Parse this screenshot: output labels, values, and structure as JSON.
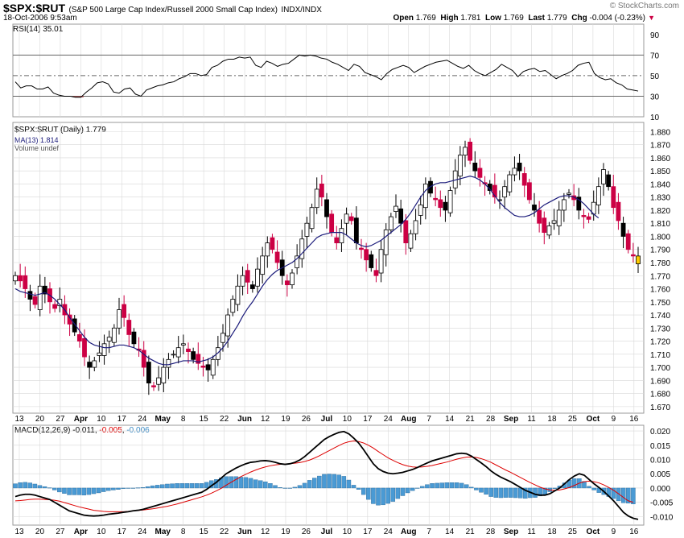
{
  "header": {
    "symbol": "$SPX:$RUT",
    "description": "(S&P 500 Large Cap Index/Russell 2000 Small Cap Index)",
    "exchange": "INDX/INDX",
    "timestamp": "18-Oct-2006 9:53am",
    "watermark": "© StockCharts.com",
    "open_label": "Open",
    "open_value": "1.769",
    "high_label": "High",
    "high_value": "1.781",
    "low_label": "Low",
    "low_value": "1.769",
    "last_label": "Last",
    "last_value": "1.779",
    "chg_label": "Chg",
    "chg_value": "-0.004 (-0.23%)",
    "chg_arrow": "▼"
  },
  "colors": {
    "up_candle": "#ffffff",
    "down_candle": "#000000",
    "red_candle": "#cc0044",
    "ma_line": "#1a1a7a",
    "rsi_line": "#000000",
    "rsi_overbought_fill": "#3a6b3a",
    "rsi_oversold_fill": "#b04040",
    "macd_line": "#000000",
    "signal_line": "#dd0000",
    "histogram": "#4a9ad4",
    "last_candle": "#ffcc00",
    "grid": "#d8d8d8"
  },
  "chart_data": [
    {
      "type": "line",
      "panel": "RSI",
      "legend": "RSI(14) 35.01",
      "ylim": [
        10,
        100
      ],
      "yticks": [
        90,
        70,
        50,
        30,
        10
      ],
      "reference_lines": [
        70,
        50,
        30
      ],
      "series": [
        {
          "values": [
            44,
            38,
            40,
            40,
            37,
            37,
            39,
            33,
            31,
            30,
            30,
            29,
            29,
            34,
            38,
            43,
            44,
            42,
            34,
            33,
            37,
            38,
            32,
            30,
            36,
            38,
            40,
            41,
            43,
            44,
            47,
            49,
            52,
            52,
            50,
            51,
            58,
            60,
            64,
            66,
            66,
            68,
            67,
            68,
            60,
            58,
            64,
            62,
            59,
            61,
            62,
            66,
            70,
            69,
            70,
            69,
            67,
            66,
            63,
            61,
            58,
            55,
            61,
            59,
            53,
            51,
            49,
            46,
            52,
            56,
            58,
            60,
            58,
            53,
            56,
            59,
            61,
            63,
            64,
            65,
            62,
            59,
            57,
            60,
            55,
            52,
            50,
            53,
            56,
            61,
            58,
            55,
            49,
            54,
            56,
            57,
            54,
            55,
            51,
            47,
            50,
            52,
            55,
            60,
            62,
            63,
            52,
            48,
            46,
            47,
            43,
            41,
            37,
            36,
            35
          ]
        }
      ]
    },
    {
      "type": "candlestick",
      "panel": "price",
      "legend": [
        "$SPX:$RUT (Daily) 1.779",
        "MA(13) 1.814",
        "Volume undef"
      ],
      "ylim": [
        1.665,
        1.887
      ],
      "yticks": [
        1.88,
        1.87,
        1.86,
        1.85,
        1.84,
        1.83,
        1.82,
        1.81,
        1.8,
        1.79,
        1.78,
        1.77,
        1.76,
        1.75,
        1.74,
        1.73,
        1.72,
        1.71,
        1.7,
        1.69,
        1.68,
        1.67
      ],
      "x_tick_labels": [
        "13",
        "20",
        "27",
        "Apr",
        "10",
        "17",
        "24",
        "May",
        "8",
        "15",
        "22",
        "Jun",
        "12",
        "19",
        "26",
        "Jul",
        "10",
        "17",
        "24",
        "Aug",
        "7",
        "14",
        "21",
        "28",
        "Sep",
        "11",
        "18",
        "25",
        "Oct",
        "9",
        "16"
      ],
      "close": [
        1.77,
        1.766,
        1.76,
        1.752,
        1.748,
        1.762,
        1.756,
        1.75,
        1.745,
        1.752,
        1.74,
        1.733,
        1.727,
        1.72,
        1.708,
        1.7,
        1.705,
        1.711,
        1.718,
        1.723,
        1.73,
        1.744,
        1.738,
        1.725,
        1.718,
        1.713,
        1.7,
        1.688,
        1.685,
        1.692,
        1.7,
        1.706,
        1.71,
        1.715,
        1.718,
        1.712,
        1.706,
        1.703,
        1.7,
        1.698,
        1.706,
        1.715,
        1.726,
        1.74,
        1.752,
        1.762,
        1.77,
        1.765,
        1.76,
        1.775,
        1.785,
        1.795,
        1.79,
        1.78,
        1.77,
        1.763,
        1.772,
        1.785,
        1.798,
        1.81,
        1.822,
        1.836,
        1.83,
        1.815,
        1.803,
        1.795,
        1.806,
        1.817,
        1.812,
        1.795,
        1.79,
        1.782,
        1.776,
        1.77,
        1.79,
        1.805,
        1.815,
        1.823,
        1.81,
        1.795,
        1.802,
        1.812,
        1.824,
        1.84,
        1.833,
        1.828,
        1.822,
        1.82,
        1.835,
        1.85,
        1.862,
        1.868,
        1.858,
        1.85,
        1.845,
        1.84,
        1.835,
        1.83,
        1.828,
        1.838,
        1.847,
        1.852,
        1.85,
        1.839,
        1.828,
        1.82,
        1.81,
        1.803,
        1.808,
        1.812,
        1.82,
        1.828,
        1.833,
        1.828,
        1.82,
        1.815,
        1.813,
        1.826,
        1.838,
        1.851,
        1.838,
        1.822,
        1.812,
        1.8,
        1.79,
        1.785,
        1.779
      ],
      "ma": [
        1.76,
        1.758,
        1.757,
        1.756,
        1.755,
        1.756,
        1.757,
        1.755,
        1.752,
        1.748,
        1.744,
        1.738,
        1.733,
        1.728,
        1.723,
        1.719,
        1.717,
        1.716,
        1.715,
        1.715,
        1.716,
        1.717,
        1.717,
        1.716,
        1.715,
        1.713,
        1.71,
        1.707,
        1.705,
        1.703,
        1.702,
        1.702,
        1.703,
        1.704,
        1.705,
        1.705,
        1.705,
        1.704,
        1.705,
        1.706,
        1.708,
        1.711,
        1.715,
        1.72,
        1.726,
        1.732,
        1.739,
        1.745,
        1.75,
        1.756,
        1.762,
        1.767,
        1.771,
        1.774,
        1.776,
        1.778,
        1.78,
        1.783,
        1.787,
        1.791,
        1.795,
        1.799,
        1.801,
        1.802,
        1.803,
        1.803,
        1.803,
        1.801,
        1.798,
        1.795,
        1.793,
        1.792,
        1.793,
        1.795,
        1.797,
        1.8,
        1.803,
        1.806,
        1.809,
        1.813,
        1.818,
        1.824,
        1.83,
        1.835,
        1.838,
        1.84,
        1.841,
        1.841,
        1.842,
        1.843,
        1.844,
        1.845,
        1.846,
        1.845,
        1.843,
        1.84,
        1.836,
        1.831,
        1.826,
        1.822,
        1.819,
        1.816,
        1.815,
        1.815,
        1.816,
        1.818,
        1.821,
        1.824,
        1.826,
        1.828,
        1.83,
        1.831,
        1.831,
        1.83,
        1.828,
        1.825,
        1.821,
        1.817,
        1.814
      ]
    },
    {
      "type": "line",
      "panel": "MACD",
      "legend": [
        "MACD(12,26,9) -0.011",
        "-0.005",
        "-0.006"
      ],
      "ylim": [
        -0.013,
        0.022
      ],
      "yticks": [
        0.02,
        0.015,
        0.01,
        0.005,
        0.0,
        -0.005,
        -0.01
      ],
      "x_tick_labels": [
        "13",
        "20",
        "27",
        "Apr",
        "10",
        "17",
        "24",
        "May",
        "8",
        "15",
        "22",
        "Jun",
        "12",
        "19",
        "26",
        "Jul",
        "10",
        "17",
        "24",
        "Aug",
        "7",
        "14",
        "21",
        "28",
        "Sep",
        "11",
        "18",
        "25",
        "Oct",
        "9",
        "16"
      ],
      "series": [
        {
          "name": "MACD(12,26,9)",
          "values": [
            -0.003,
            -0.0025,
            -0.0022,
            -0.0022,
            -0.0025,
            -0.003,
            -0.0035,
            -0.004,
            -0.005,
            -0.006,
            -0.007,
            -0.008,
            -0.0085,
            -0.009,
            -0.0095,
            -0.0097,
            -0.0098,
            -0.0097,
            -0.0095,
            -0.0092,
            -0.009,
            -0.0088,
            -0.0085,
            -0.0083,
            -0.008,
            -0.0078,
            -0.0075,
            -0.007,
            -0.0065,
            -0.006,
            -0.0055,
            -0.005,
            -0.0045,
            -0.004,
            -0.0035,
            -0.003,
            -0.0025,
            -0.002,
            -0.0015,
            -0.0005,
            0.0008,
            0.002,
            0.0035,
            0.005,
            0.006,
            0.007,
            0.0078,
            0.0085,
            0.009,
            0.0092,
            0.0095,
            0.0096,
            0.0094,
            0.009,
            0.0085,
            0.0083,
            0.0085,
            0.009,
            0.0098,
            0.011,
            0.0125,
            0.014,
            0.0155,
            0.017,
            0.018,
            0.0188,
            0.0195,
            0.0198,
            0.019,
            0.0175,
            0.0158,
            0.0135,
            0.011,
            0.0085,
            0.0068,
            0.0058,
            0.0052,
            0.005,
            0.0052,
            0.0055,
            0.006,
            0.0065,
            0.0072,
            0.008,
            0.0088,
            0.0095,
            0.01,
            0.0105,
            0.011,
            0.0115,
            0.012,
            0.0122,
            0.012,
            0.0112,
            0.01,
            0.0088,
            0.0075,
            0.006,
            0.0048,
            0.0038,
            0.003,
            0.0022,
            0.0012,
            0.0002,
            -0.0008,
            -0.0015,
            -0.0022,
            -0.0025,
            -0.0025,
            -0.002,
            -0.001,
            0.0,
            0.0015,
            0.003,
            0.0042,
            0.005,
            0.0045,
            0.003,
            0.0015,
            0.0002,
            -0.0012,
            -0.0028,
            -0.0045,
            -0.0065,
            -0.0085,
            -0.0098,
            -0.0106,
            -0.011
          ]
        },
        {
          "name": "signal",
          "values": [
            -0.0045,
            -0.0044,
            -0.0042,
            -0.004,
            -0.0039,
            -0.0039,
            -0.004,
            -0.0041,
            -0.0043,
            -0.0046,
            -0.0051,
            -0.0056,
            -0.0061,
            -0.0066,
            -0.007,
            -0.0074,
            -0.0078,
            -0.008,
            -0.0082,
            -0.0083,
            -0.0083,
            -0.0083,
            -0.0083,
            -0.0082,
            -0.008,
            -0.0079,
            -0.0077,
            -0.0075,
            -0.0073,
            -0.007,
            -0.0067,
            -0.0064,
            -0.006,
            -0.0056,
            -0.0051,
            -0.0046,
            -0.0041,
            -0.0036,
            -0.0031,
            -0.0025,
            -0.0018,
            -0.001,
            -0.0001,
            0.001,
            0.002,
            0.003,
            0.004,
            0.0048,
            0.0056,
            0.0063,
            0.0069,
            0.0074,
            0.0078,
            0.0081,
            0.0083,
            0.0084,
            0.0085,
            0.0087,
            0.0089,
            0.0093,
            0.0098,
            0.0105,
            0.0113,
            0.0122,
            0.0131,
            0.014,
            0.0149,
            0.0157,
            0.0162,
            0.0165,
            0.0163,
            0.0158,
            0.015,
            0.014,
            0.0128,
            0.0117,
            0.0106,
            0.0097,
            0.0089,
            0.0082,
            0.0077,
            0.0074,
            0.0073,
            0.0074,
            0.0076,
            0.0079,
            0.0083,
            0.0087,
            0.0091,
            0.0096,
            0.0101,
            0.0105,
            0.0108,
            0.0109,
            0.0107,
            0.0103,
            0.0097,
            0.009,
            0.0081,
            0.0072,
            0.0063,
            0.0055,
            0.0046,
            0.0037,
            0.0028,
            0.0019,
            0.0011,
            0.0003,
            -0.0003,
            -0.0007,
            -0.0008,
            -0.0007,
            -0.0003,
            0.0002,
            0.0009,
            0.0017,
            0.0022,
            0.0024,
            0.0022,
            0.0018,
            0.0011,
            0.0002,
            -0.0008,
            -0.002,
            -0.0033,
            -0.0045,
            -0.005
          ]
        }
      ]
    }
  ]
}
